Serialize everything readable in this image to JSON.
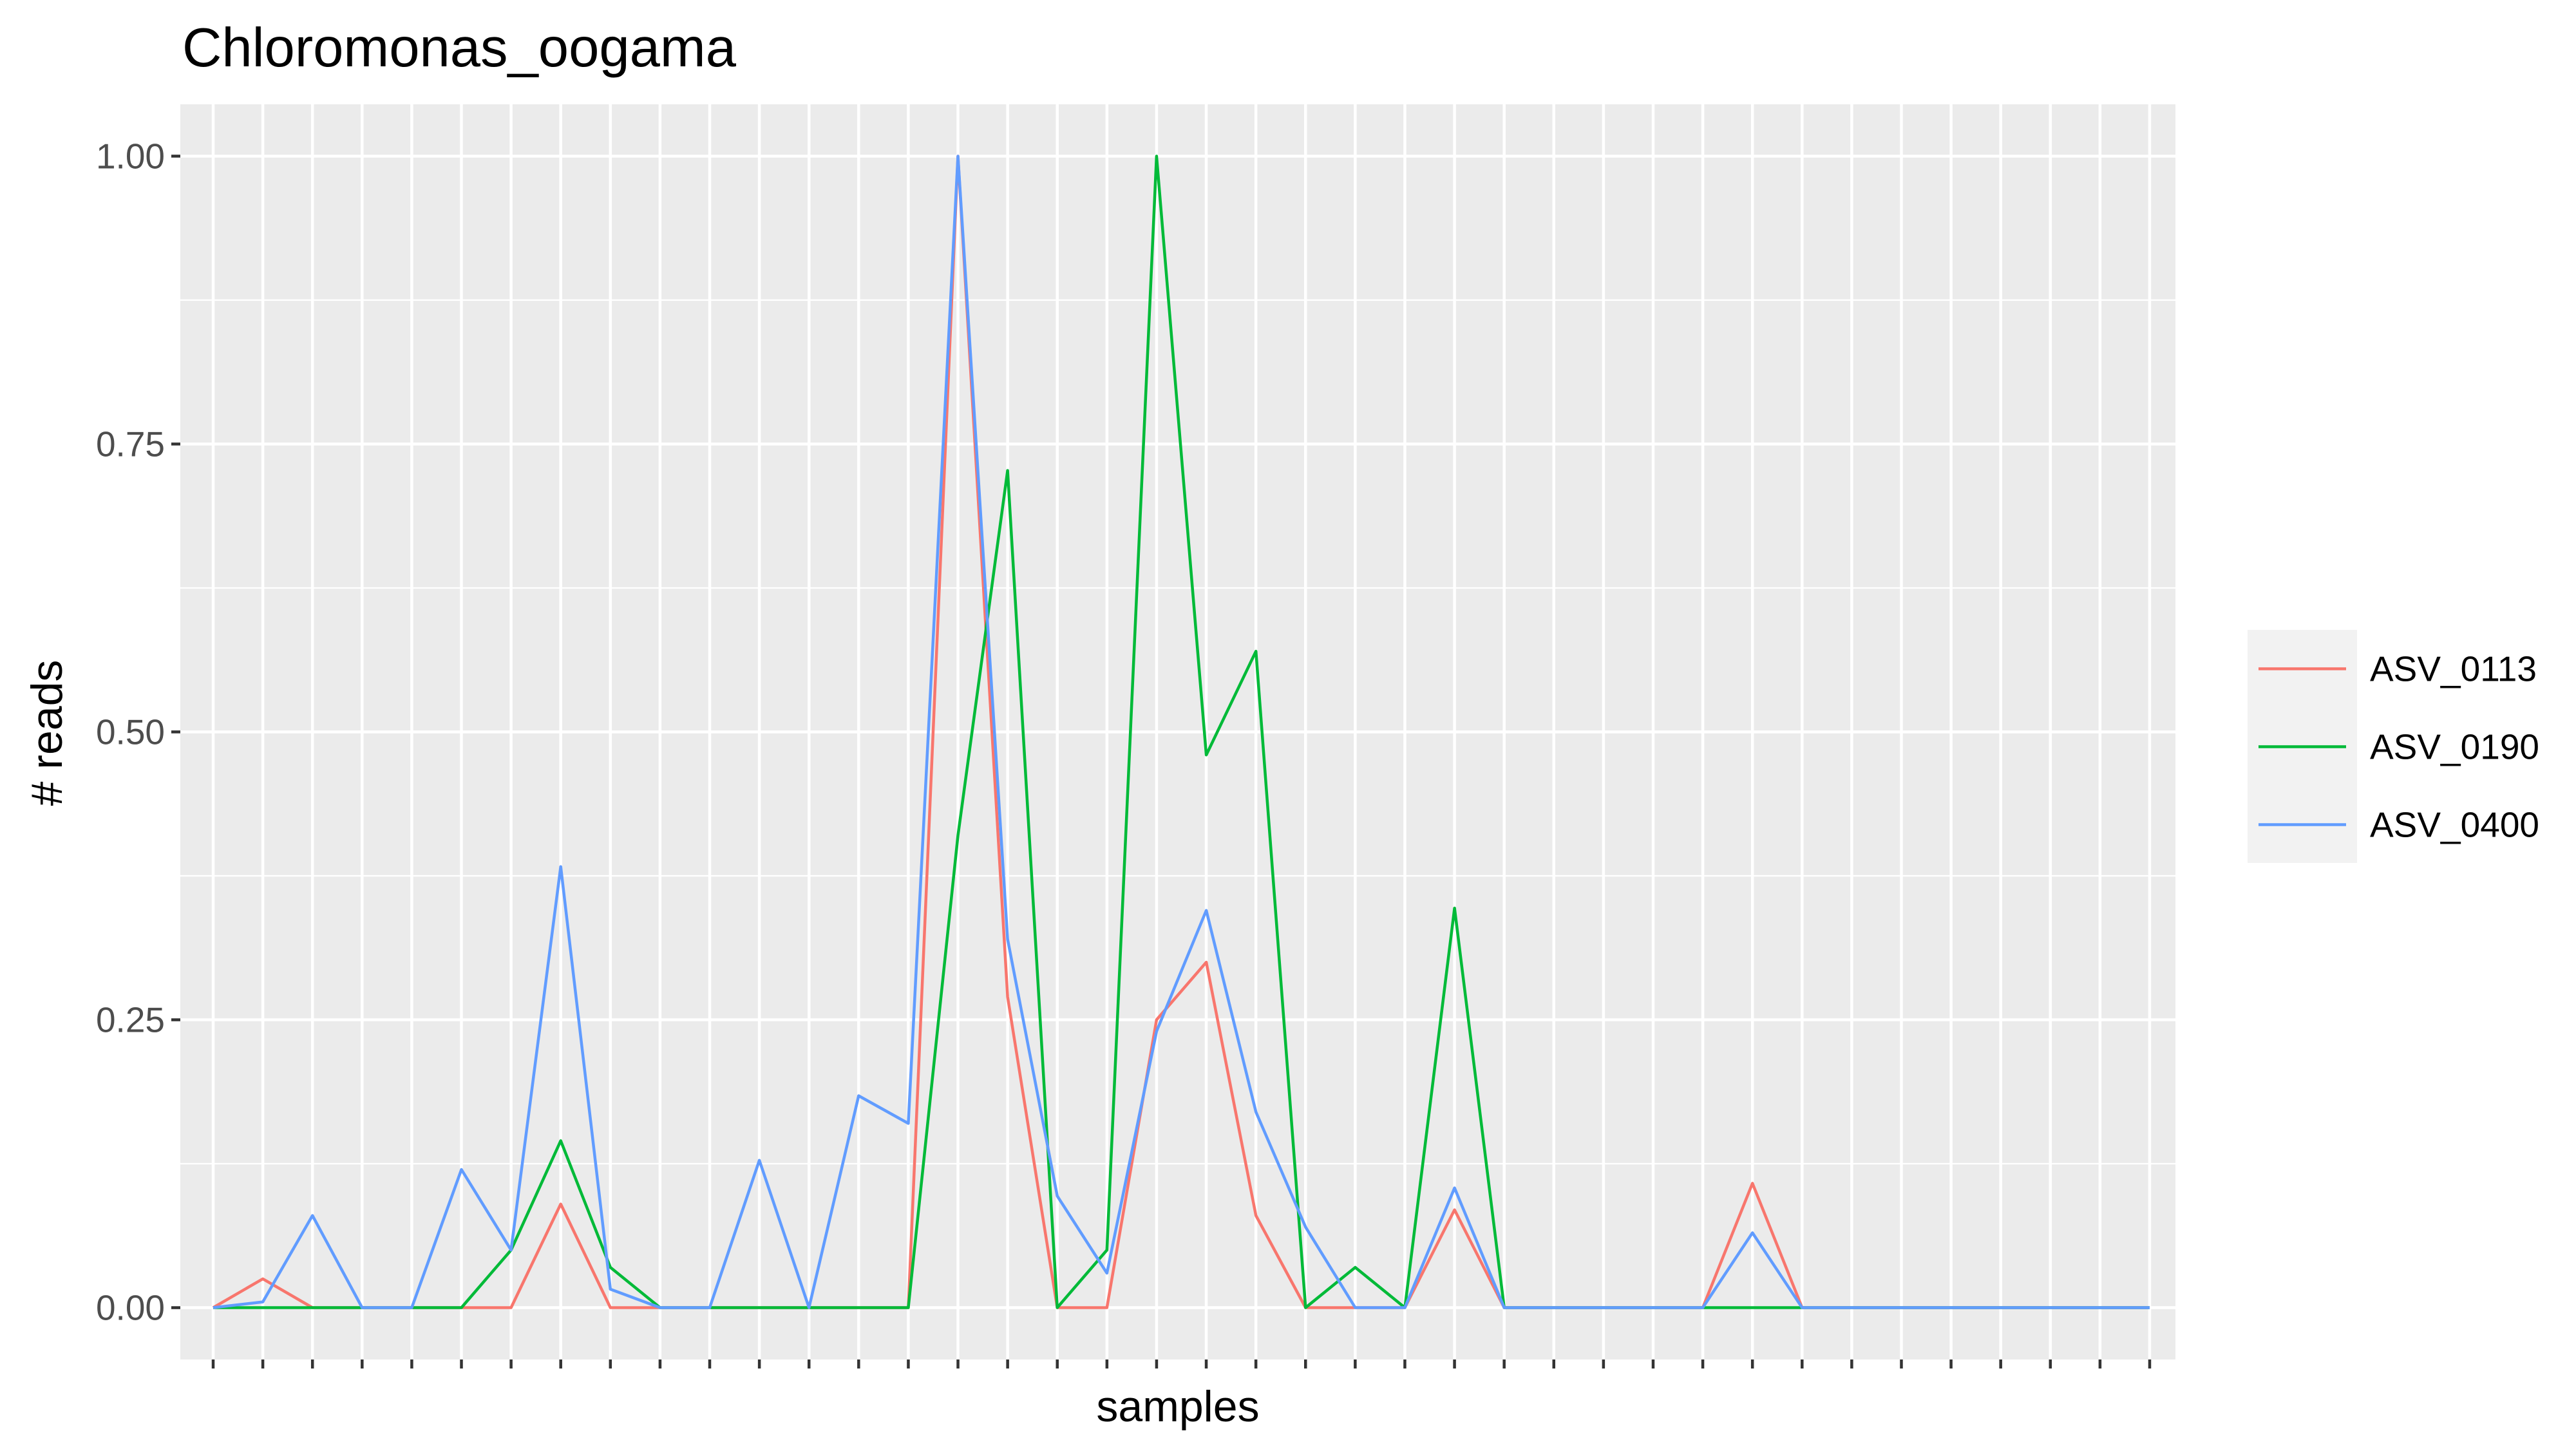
{
  "chart_data": {
    "type": "line",
    "title": "Chloromonas_oogama",
    "xlabel": "samples",
    "ylabel": "# reads",
    "ylim": [
      -0.045,
      1.045
    ],
    "y_ticks": [
      "0.00",
      "0.25",
      "0.50",
      "0.75",
      "1.00"
    ],
    "y_tick_values": [
      0,
      0.25,
      0.5,
      0.75,
      1
    ],
    "n_samples": 40,
    "grid": true,
    "legend_position": "right",
    "series": [
      {
        "name": "ASV_0113",
        "color": "#F8766D",
        "values": [
          0,
          0.025,
          0,
          0,
          0,
          0,
          0,
          0.09,
          0,
          0,
          0,
          0,
          0,
          0,
          0,
          1.0,
          0.27,
          0,
          0,
          0.25,
          0.3,
          0.08,
          0,
          0,
          0,
          0.085,
          0,
          0,
          0,
          0,
          0,
          0.108,
          0,
          0,
          0,
          0,
          0,
          0,
          0,
          0
        ]
      },
      {
        "name": "ASV_0190",
        "color": "#00BA38",
        "values": [
          0,
          0,
          0,
          0,
          0,
          0,
          0.05,
          0.145,
          0.035,
          0,
          0,
          0,
          0,
          0,
          0,
          0.41,
          0.727,
          0,
          0.05,
          1.0,
          0.48,
          0.57,
          0,
          0.035,
          0,
          0.347,
          0,
          0,
          0,
          0,
          0,
          0,
          0,
          0,
          0,
          0,
          0,
          0,
          0,
          0
        ]
      },
      {
        "name": "ASV_0400",
        "color": "#619CFF",
        "values": [
          0,
          0.005,
          0.08,
          0,
          0,
          0.12,
          0.05,
          0.383,
          0.016,
          0,
          0,
          0.128,
          0,
          0.184,
          0.16,
          1.0,
          0.32,
          0.097,
          0.03,
          0.24,
          0.345,
          0.17,
          0.07,
          0,
          0,
          0.104,
          0,
          0,
          0,
          0,
          0,
          0.065,
          0,
          0,
          0,
          0,
          0,
          0,
          0,
          0
        ]
      }
    ]
  }
}
